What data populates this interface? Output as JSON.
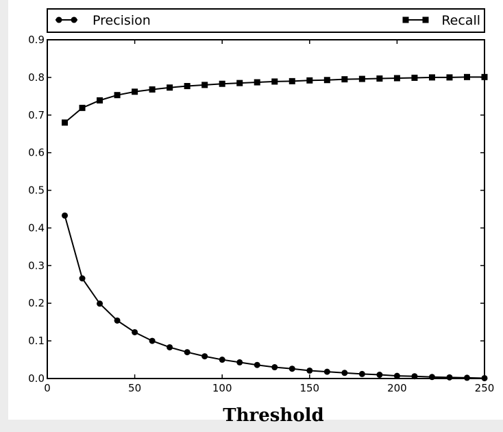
{
  "chart_data": {
    "type": "line",
    "title": "",
    "xlabel": "Threshold",
    "ylabel": "",
    "xlim": [
      0,
      250
    ],
    "ylim": [
      0,
      0.9
    ],
    "x_ticks": [
      0,
      50,
      100,
      150,
      200,
      250
    ],
    "y_ticks": [
      0.0,
      0.1,
      0.2,
      0.3,
      0.4,
      0.5,
      0.6,
      0.7,
      0.8,
      0.9
    ],
    "x_tick_labels": [
      "0",
      "50",
      "100",
      "150",
      "200",
      "250"
    ],
    "y_tick_labels": [
      "0.0",
      "0.1",
      "0.2",
      "0.3",
      "0.4",
      "0.5",
      "0.6",
      "0.7",
      "0.8",
      "0.9"
    ],
    "grid": false,
    "legend_position": "top",
    "x": [
      10,
      20,
      30,
      40,
      50,
      60,
      70,
      80,
      90,
      100,
      110,
      120,
      130,
      140,
      150,
      160,
      170,
      180,
      190,
      200,
      210,
      220,
      230,
      240,
      250
    ],
    "series": [
      {
        "name": "Precision",
        "marker": "circle",
        "color": "#000000",
        "values": [
          0.433,
          0.266,
          0.199,
          0.154,
          0.123,
          0.1,
          0.083,
          0.07,
          0.059,
          0.05,
          0.043,
          0.036,
          0.03,
          0.026,
          0.021,
          0.018,
          0.015,
          0.012,
          0.01,
          0.007,
          0.006,
          0.004,
          0.003,
          0.002,
          0.001
        ]
      },
      {
        "name": "Recall",
        "marker": "square",
        "color": "#000000",
        "values": [
          0.68,
          0.719,
          0.739,
          0.753,
          0.762,
          0.768,
          0.773,
          0.777,
          0.78,
          0.783,
          0.785,
          0.787,
          0.789,
          0.79,
          0.792,
          0.793,
          0.795,
          0.796,
          0.797,
          0.798,
          0.799,
          0.8,
          0.8,
          0.801,
          0.801
        ]
      }
    ]
  }
}
